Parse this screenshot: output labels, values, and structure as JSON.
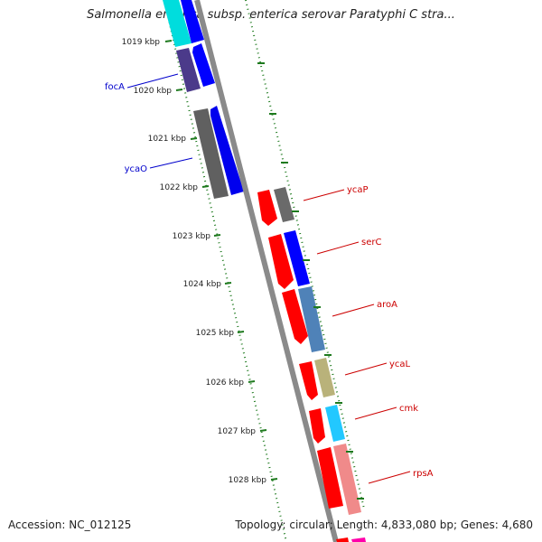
{
  "header": {
    "title": "Salmonella enterica subsp. enterica serovar Paratyphi C stra..."
  },
  "footer": {
    "accession": "Accession: NC_012125",
    "summary": "Topology: circular; Length: 4,833,080 bp; Genes: 4,680"
  },
  "ticks": [
    "1019 kbp",
    "1020 kbp",
    "1021 kbp",
    "1022 kbp",
    "1023 kbp",
    "1024 kbp",
    "1025 kbp",
    "1026 kbp",
    "1027 kbp",
    "1028 kbp"
  ],
  "labels": {
    "focA": "focA",
    "ycaO": "ycaO",
    "ycaP": "ycaP",
    "serC": "serC",
    "aroA": "aroA",
    "ycaL": "ycaL",
    "cmk": "cmk",
    "rpsA": "rpsA"
  },
  "colors": {
    "backbone": "#8a8a8a",
    "tick": "#1e7a1e",
    "label_left": "#0000cc",
    "label_right": "#cc0000",
    "red": "#ff0000",
    "blue": "#0000ff",
    "gray": "#707070",
    "navy": "#4b3a8a",
    "cyan": "#00dddd",
    "steel": "#4f82b8",
    "khaki": "#b9b27a",
    "sky": "#22c8ff",
    "salmon": "#f08a8a",
    "magenta": "#ff00aa"
  }
}
